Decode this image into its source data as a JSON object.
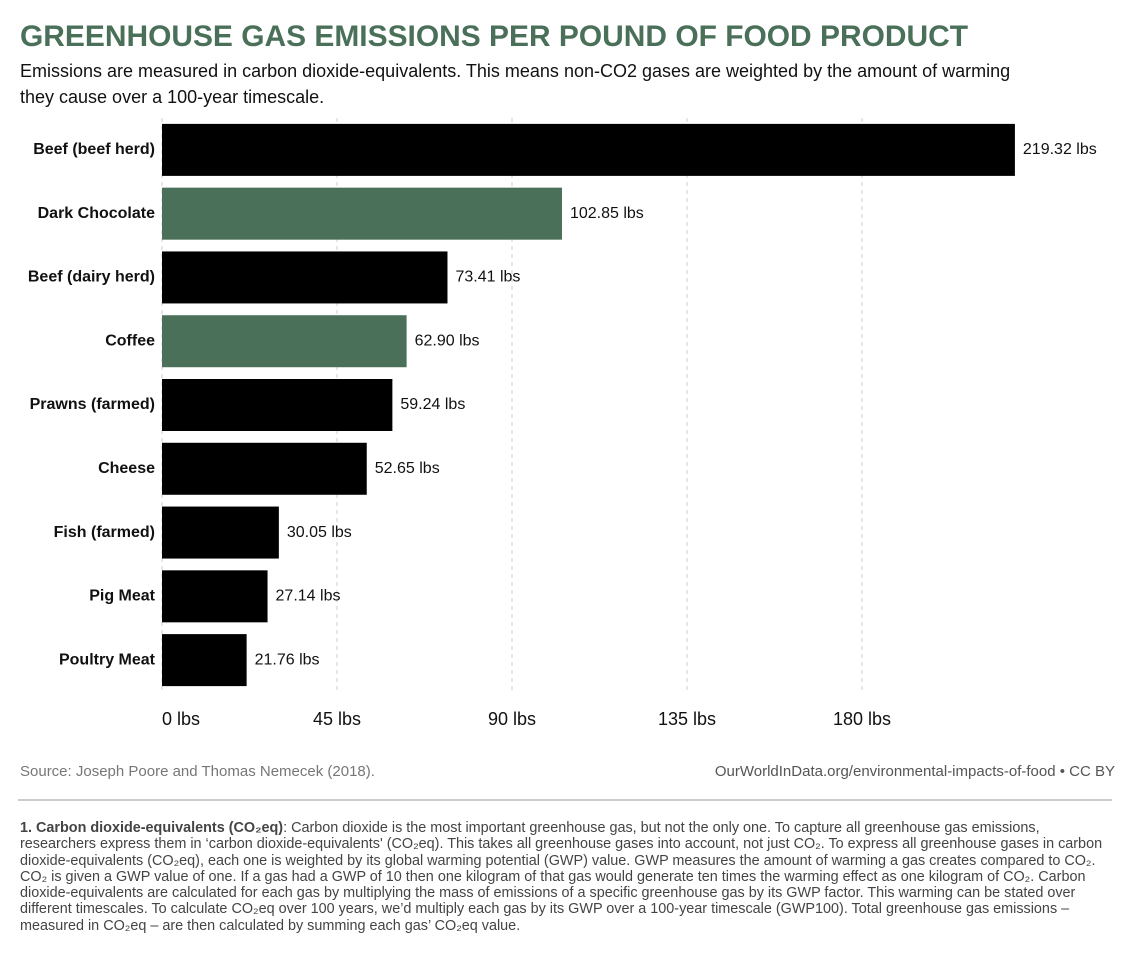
{
  "chart_data": {
    "type": "bar",
    "orientation": "horizontal",
    "title": "GREENHOUSE GAS EMISSIONS PER POUND OF FOOD PRODUCT",
    "subtitle": "Emissions are measured in carbon dioxide-equivalents. This means non-CO2 gases are weighted by the amount of warming they cause over a 100-year timescale.",
    "categories": [
      "Beef (beef herd)",
      "Dark Chocolate",
      "Beef (dairy herd)",
      "Coffee",
      "Prawns (farmed)",
      "Cheese",
      "Fish (farmed)",
      "Pig Meat",
      "Poultry Meat"
    ],
    "values": [
      219.32,
      102.85,
      73.41,
      62.9,
      59.24,
      52.65,
      30.05,
      27.14,
      21.76
    ],
    "value_labels": [
      "219.32 lbs",
      "102.85 lbs",
      "73.41 lbs",
      "62.90 lbs",
      "59.24 lbs",
      "52.65 lbs",
      "30.05 lbs",
      "27.14 lbs",
      "21.76 lbs"
    ],
    "colors": [
      "#000000",
      "#4a7059",
      "#000000",
      "#4a7059",
      "#000000",
      "#000000",
      "#000000",
      "#000000",
      "#000000"
    ],
    "xlim": [
      0,
      223.2
    ],
    "xticks": [
      {
        "value": 0,
        "label": "0 lbs"
      },
      {
        "value": 45,
        "label": "45 lbs"
      },
      {
        "value": 90,
        "label": "90 lbs"
      },
      {
        "value": 135,
        "label": "135 lbs"
      },
      {
        "value": 180,
        "label": "180 lbs"
      }
    ],
    "grid": true,
    "source": "Source: Joseph Poore and Thomas Nemecek (2018).",
    "url": "OurWorldInData.org/environmental-impacts-of-food • CC BY",
    "footnote": {
      "label": "1. Carbon dioxide-equivalents (CO₂eq)",
      "text": ": Carbon dioxide is the most important greenhouse gas, but not the only one. To capture all greenhouse gas emissions, researchers express them in ‘carbon dioxide-equivalents' (CO₂eq). This takes all greenhouse gases into account, not just CO₂. To express all greenhouse gases in carbon dioxide-equivalents (CO₂eq), each one is weighted by its global warming potential (GWP) value. GWP measures the amount of warming a gas creates compared to CO₂. CO₂ is given a GWP value of one. If a gas had a GWP of 10 then one kilogram of that gas would generate ten times the warming effect as one kilogram of CO₂. Carbon dioxide-equivalents are calculated for each gas by multiplying the mass of emissions of a specific greenhouse gas by its GWP factor. This warming can be stated over different timescales. To calculate CO₂eq over 100 years, we’d multiply each gas by its GWP over a 100-year timescale (GWP100). Total greenhouse gas emissions – measured in CO₂eq – are then calculated by summing each gas’ CO₂eq value."
    }
  }
}
